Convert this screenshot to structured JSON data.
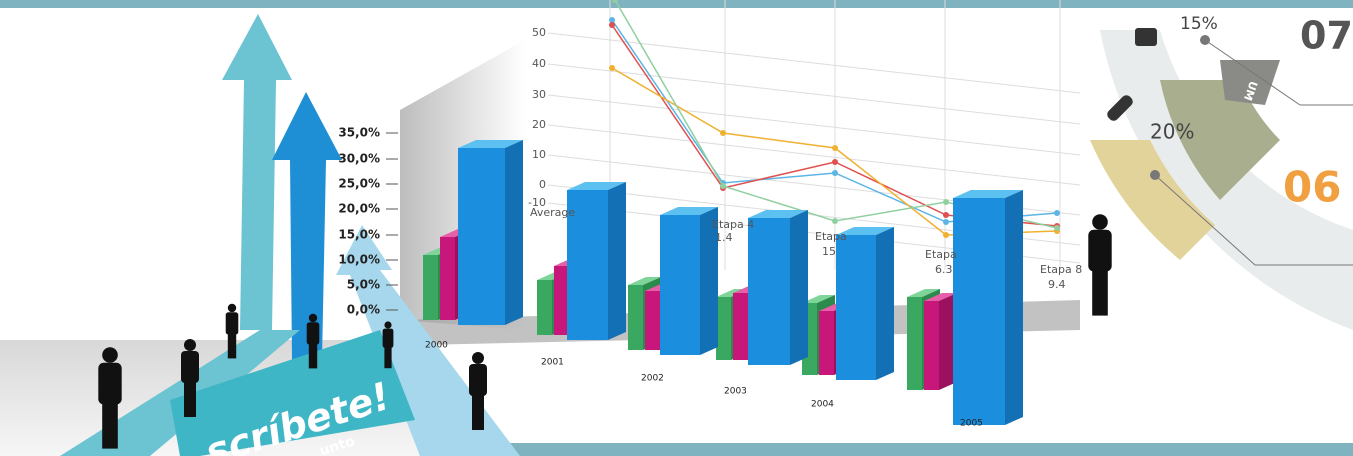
{
  "bar_chart": {
    "yticks": [
      "35,0%",
      "30,0%",
      "25,0%",
      "20,0%",
      "15,0%",
      "10,0%",
      "5,0%",
      "0,0%"
    ],
    "years": [
      "2000",
      "2001",
      "2002",
      "2003",
      "2004",
      "2005"
    ]
  },
  "line_chart": {
    "yticks": [
      "50",
      "40",
      "30",
      "20",
      "10",
      "0",
      "-10"
    ],
    "labels": [
      "Average",
      "Etapa 4",
      "1.4",
      "Etapa",
      "15",
      "Etapa",
      "6.3",
      "Etapa 8",
      "9.4"
    ]
  },
  "wheel": {
    "pct_top": "15%",
    "pct_mid": "20%",
    "num_top": "07",
    "num_mid": "06",
    "tag": "UM"
  },
  "banner": {
    "headline": "scríbete!",
    "subline": "unto"
  }
}
